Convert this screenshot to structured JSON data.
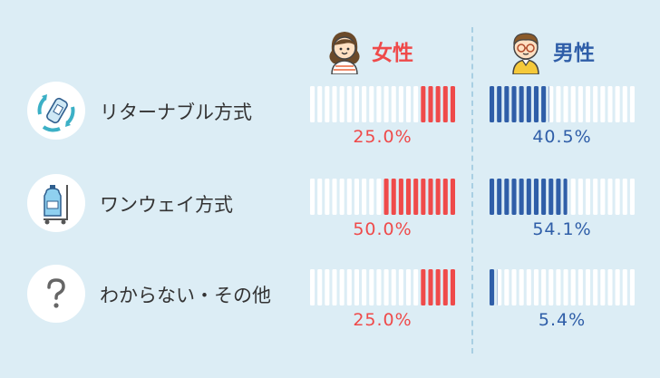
{
  "legend": {
    "female": "女性",
    "male": "男性"
  },
  "rows": [
    {
      "label": "リターナブル方式",
      "icon": "recycle-bottle-icon",
      "female_pct": "25.0%",
      "male_pct": "40.5%"
    },
    {
      "label": "ワンウェイ方式",
      "icon": "water-bottle-cart-icon",
      "female_pct": "50.0%",
      "male_pct": "54.1%"
    },
    {
      "label": "わからない・その他",
      "icon": "question-mark-icon",
      "female_pct": "25.0%",
      "male_pct": "5.4%"
    }
  ],
  "colors": {
    "background": "#dcedf5",
    "female": "#ef4a4a",
    "male": "#2f5ea8",
    "empty_bar": "#ffffff"
  },
  "chart_data": {
    "type": "bar",
    "categories": [
      "リターナブル方式",
      "ワンウェイ方式",
      "わからない・その他"
    ],
    "series": [
      {
        "name": "女性",
        "values": [
          25.0,
          50.0,
          25.0
        ]
      },
      {
        "name": "男性",
        "values": [
          40.5,
          54.1,
          5.4
        ]
      }
    ],
    "ylim": [
      0,
      100
    ]
  }
}
